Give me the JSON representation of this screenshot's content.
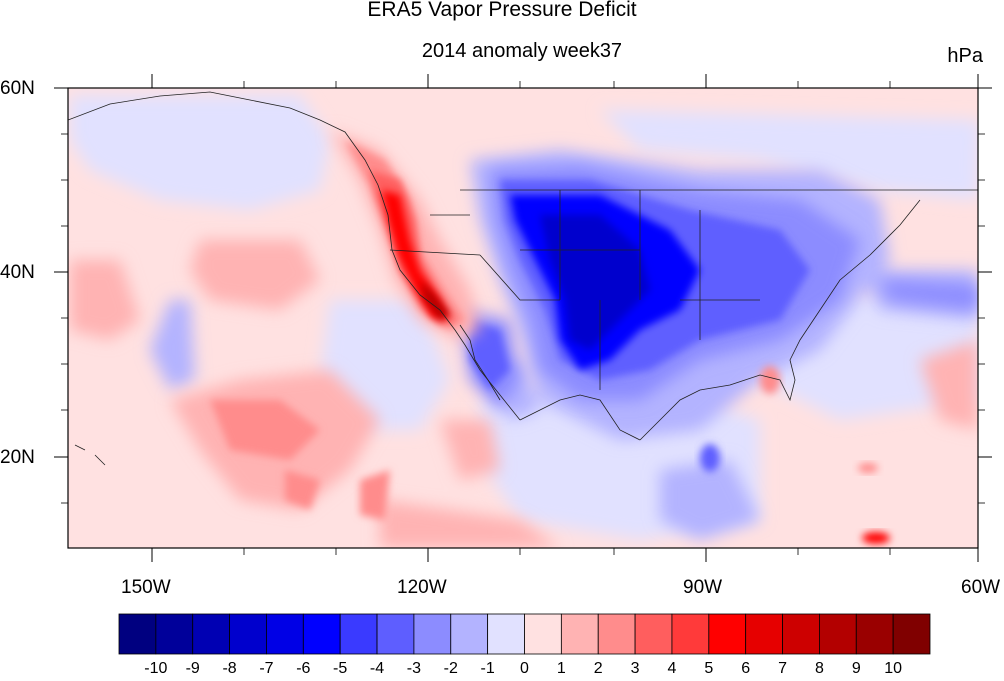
{
  "title": "ERA5 Vapor Pressure Deficit",
  "subtitle": "2014 anomaly week37",
  "units": "hPa",
  "map": {
    "lat_labels": [
      "60N",
      "40N",
      "20N"
    ],
    "lon_labels": [
      "150W",
      "120W",
      "90W",
      "60W"
    ],
    "lon_range": [
      -159,
      -61
    ],
    "lat_range": [
      10,
      60
    ]
  },
  "colorbar": {
    "labels": [
      "-10",
      "-9",
      "-8",
      "-7",
      "-6",
      "-5",
      "-4",
      "-3",
      "-2",
      "-1",
      "0",
      "1",
      "2",
      "3",
      "4",
      "5",
      "6",
      "7",
      "8",
      "9",
      "10"
    ],
    "colors": [
      "#000080",
      "#00009a",
      "#0000b3",
      "#0000cd",
      "#0000e6",
      "#0000ff",
      "#3a3aff",
      "#5e5eff",
      "#8c8cff",
      "#b3b3ff",
      "#e1e1ff",
      "#ffe1e1",
      "#ffb3b3",
      "#ff8c8c",
      "#ff5e5e",
      "#ff3a3a",
      "#ff0000",
      "#e60000",
      "#cd0000",
      "#b30000",
      "#9a0000",
      "#800000"
    ]
  },
  "chart_data": {
    "type": "heatmap",
    "title": "ERA5 Vapor Pressure Deficit",
    "subtitle": "2014 anomaly week37",
    "units": "hPa",
    "xlabel": "",
    "ylabel": "",
    "lon_range": [
      -159,
      -61
    ],
    "lat_range": [
      10,
      60
    ],
    "color_levels": [
      -10,
      -9,
      -8,
      -7,
      -6,
      -5,
      -4,
      -3,
      -2,
      -1,
      0,
      1,
      2,
      3,
      4,
      5,
      6,
      7,
      8,
      9,
      10
    ]
  }
}
